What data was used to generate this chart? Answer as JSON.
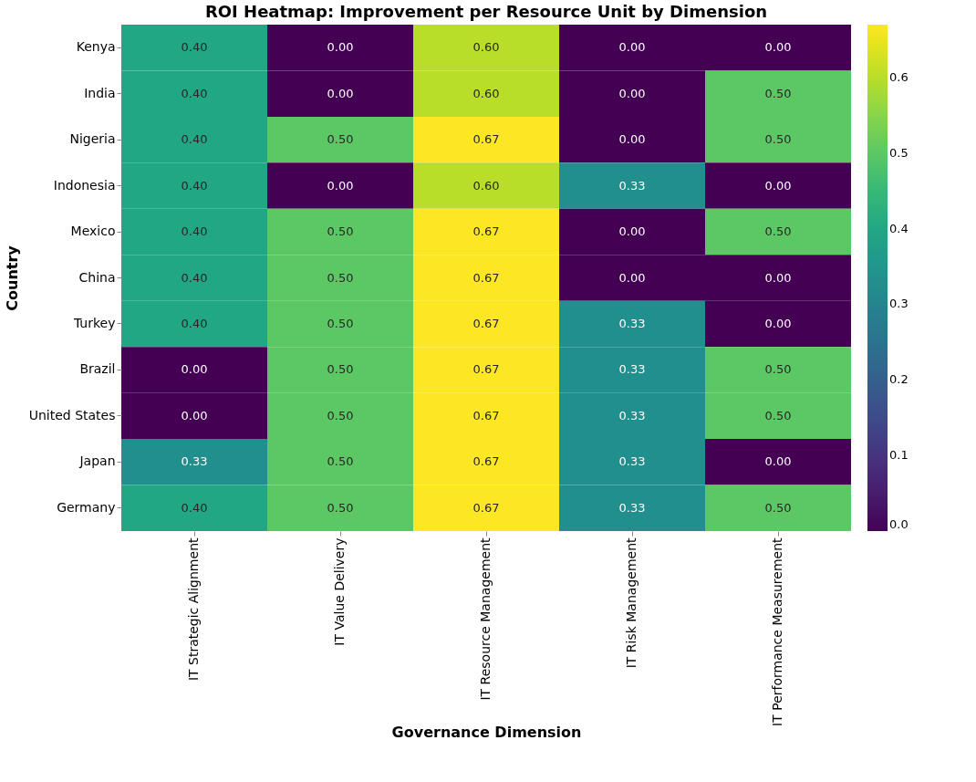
{
  "chart_data": {
    "type": "heatmap",
    "title": "ROI Heatmap: Improvement per Resource Unit by Dimension",
    "xlabel": "Governance Dimension",
    "ylabel": "Country",
    "categories": [
      "IT Strategic Alignment",
      "IT Value Delivery",
      "IT Resource Management",
      "IT Risk Management",
      "IT Performance Measurement"
    ],
    "y_categories": [
      "Kenya",
      "India",
      "Nigeria",
      "Indonesia",
      "Mexico",
      "China",
      "Turkey",
      "Brazil",
      "United States",
      "Japan",
      "Germany"
    ],
    "cells": [
      [
        0.4,
        0.0,
        0.6,
        0.0,
        0.0
      ],
      [
        0.4,
        0.0,
        0.6,
        0.0,
        0.5
      ],
      [
        0.4,
        0.5,
        0.67,
        0.0,
        0.5
      ],
      [
        0.4,
        0.0,
        0.6,
        0.33,
        0.0
      ],
      [
        0.4,
        0.5,
        0.67,
        0.0,
        0.5
      ],
      [
        0.4,
        0.5,
        0.67,
        0.0,
        0.0
      ],
      [
        0.4,
        0.5,
        0.67,
        0.33,
        0.0
      ],
      [
        0.0,
        0.5,
        0.67,
        0.33,
        0.5
      ],
      [
        0.0,
        0.5,
        0.67,
        0.33,
        0.5
      ],
      [
        0.33,
        0.5,
        0.67,
        0.33,
        0.0
      ],
      [
        0.4,
        0.5,
        0.67,
        0.33,
        0.5
      ]
    ],
    "cell_labels": [
      [
        "0.40",
        "0.00",
        "0.60",
        "0.00",
        "0.00"
      ],
      [
        "0.40",
        "0.00",
        "0.60",
        "0.00",
        "0.50"
      ],
      [
        "0.40",
        "0.50",
        "0.67",
        "0.00",
        "0.50"
      ],
      [
        "0.40",
        "0.00",
        "0.60",
        "0.33",
        "0.00"
      ],
      [
        "0.40",
        "0.50",
        "0.67",
        "0.00",
        "0.50"
      ],
      [
        "0.40",
        "0.50",
        "0.67",
        "0.00",
        "0.00"
      ],
      [
        "0.40",
        "0.50",
        "0.67",
        "0.33",
        "0.00"
      ],
      [
        "0.00",
        "0.50",
        "0.67",
        "0.33",
        "0.50"
      ],
      [
        "0.00",
        "0.50",
        "0.67",
        "0.33",
        "0.50"
      ],
      [
        "0.33",
        "0.50",
        "0.67",
        "0.33",
        "0.00"
      ],
      [
        "0.40",
        "0.50",
        "0.67",
        "0.33",
        "0.50"
      ]
    ],
    "clim": [
      0,
      0.67
    ],
    "cticks": [
      {
        "value": 0,
        "label": "0.0"
      },
      {
        "value": 0.1,
        "label": "0.1"
      },
      {
        "value": 0.2,
        "label": "0.2"
      },
      {
        "value": 0.3,
        "label": "0.3"
      },
      {
        "value": 0.4,
        "label": "0.4"
      },
      {
        "value": 0.5,
        "label": "0.5"
      },
      {
        "value": 0.6,
        "label": "0.6"
      }
    ]
  }
}
